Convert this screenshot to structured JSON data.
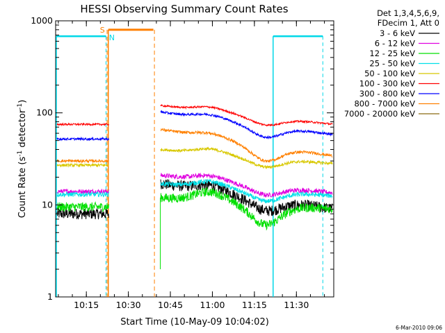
{
  "chart_data": {
    "type": "line",
    "title": "HESSI Observing Summary Count Rates",
    "xlabel": "Start Time (10-May-09 10:04:02)",
    "ylabel_main": "Count Rate (s",
    "ylabel_sup1": "-1",
    "ylabel_mid": " detector",
    "ylabel_sup2": "-1",
    "ylabel_end": ")",
    "yscale": "log",
    "ylim": [
      1,
      1000
    ],
    "xlim_minutes": [
      0,
      99.3
    ],
    "xticks": [
      {
        "minute": 10.97,
        "label": "10:15"
      },
      {
        "minute": 25.97,
        "label": "10:30"
      },
      {
        "minute": 40.97,
        "label": "10:45"
      },
      {
        "minute": 55.97,
        "label": "11:00"
      },
      {
        "minute": 70.97,
        "label": "11:15"
      },
      {
        "minute": 85.97,
        "label": "11:30"
      }
    ],
    "yticks": [
      {
        "value": 1,
        "label": "1"
      },
      {
        "value": 10,
        "label": "10"
      },
      {
        "value": 100,
        "label": "100"
      },
      {
        "value": 1000,
        "label": "1000"
      }
    ],
    "legend_header": [
      "Det 1,3,4,5,6,9,",
      "FDecim 1, Att 0"
    ],
    "legend_position": "right",
    "footer_date": "6-Mar-2010 09:06",
    "markers": {
      "saa_label": "S",
      "night_label": "N",
      "saa_color": "#ff7f00",
      "night_color": "#00d8e8",
      "saa_solid_minute": 18.8,
      "saa_dash_minutes": [
        18.0,
        34.9
      ],
      "saa_bar": {
        "start": 18.8,
        "end": 34.9,
        "value": 800
      },
      "night_solid_minutes": [
        0,
        77.4
      ],
      "night_dash_minutes": [
        18.0,
        95.4
      ],
      "night_bars": [
        {
          "start": 0,
          "end": 18.0,
          "value": 680
        },
        {
          "start": 77.4,
          "end": 95.4,
          "value": 680
        }
      ]
    },
    "gap_minutes": [
      19.0,
      37.5
    ],
    "series": [
      {
        "name": "3 - 6 keV",
        "color": "#000000",
        "pre": 8,
        "post": 17,
        "end": 9,
        "dip": 0.75,
        "noise": 0.12,
        "hump": 0.15
      },
      {
        "name": "6 - 12 keV",
        "color": "#e000e0",
        "pre": 14,
        "post": 21,
        "end": 13.5,
        "dip": 0.8,
        "noise": 0.05,
        "hump": 0.12
      },
      {
        "name": "12 - 25 keV",
        "color": "#00e000",
        "pre": 9.5,
        "post": 12,
        "end": 9,
        "dip": 0.6,
        "noise": 0.1,
        "hump": 0.25
      },
      {
        "name": "25 - 50 keV",
        "color": "#00e0e8",
        "pre": 13,
        "post": 17,
        "end": 12.5,
        "dip": 0.78,
        "noise": 0.05,
        "hump": 0.15
      },
      {
        "name": "50 - 100 keV",
        "color": "#d8c800",
        "pre": 27,
        "post": 40,
        "end": 28,
        "dip": 0.8,
        "noise": 0.03,
        "hump": 0.12
      },
      {
        "name": "100 - 300 keV",
        "color": "#ff0000",
        "pre": 75,
        "post": 120,
        "end": 75,
        "dip": 0.82,
        "noise": 0.02,
        "hump": 0.1
      },
      {
        "name": "300 - 800 keV",
        "color": "#0000ff",
        "pre": 52,
        "post": 102,
        "end": 58,
        "dip": 0.75,
        "noise": 0.025,
        "hump": 0.1
      },
      {
        "name": "800 - 7000 keV",
        "color": "#ff8000",
        "pre": 30,
        "post": 66,
        "end": 34,
        "dip": 0.68,
        "noise": 0.03,
        "hump": 0.1
      },
      {
        "name": "7000 - 20000 keV",
        "color": "#8a6a10",
        "pre": null,
        "post": null,
        "end": null,
        "dip": 1,
        "noise": 0,
        "hump": 0
      }
    ]
  }
}
